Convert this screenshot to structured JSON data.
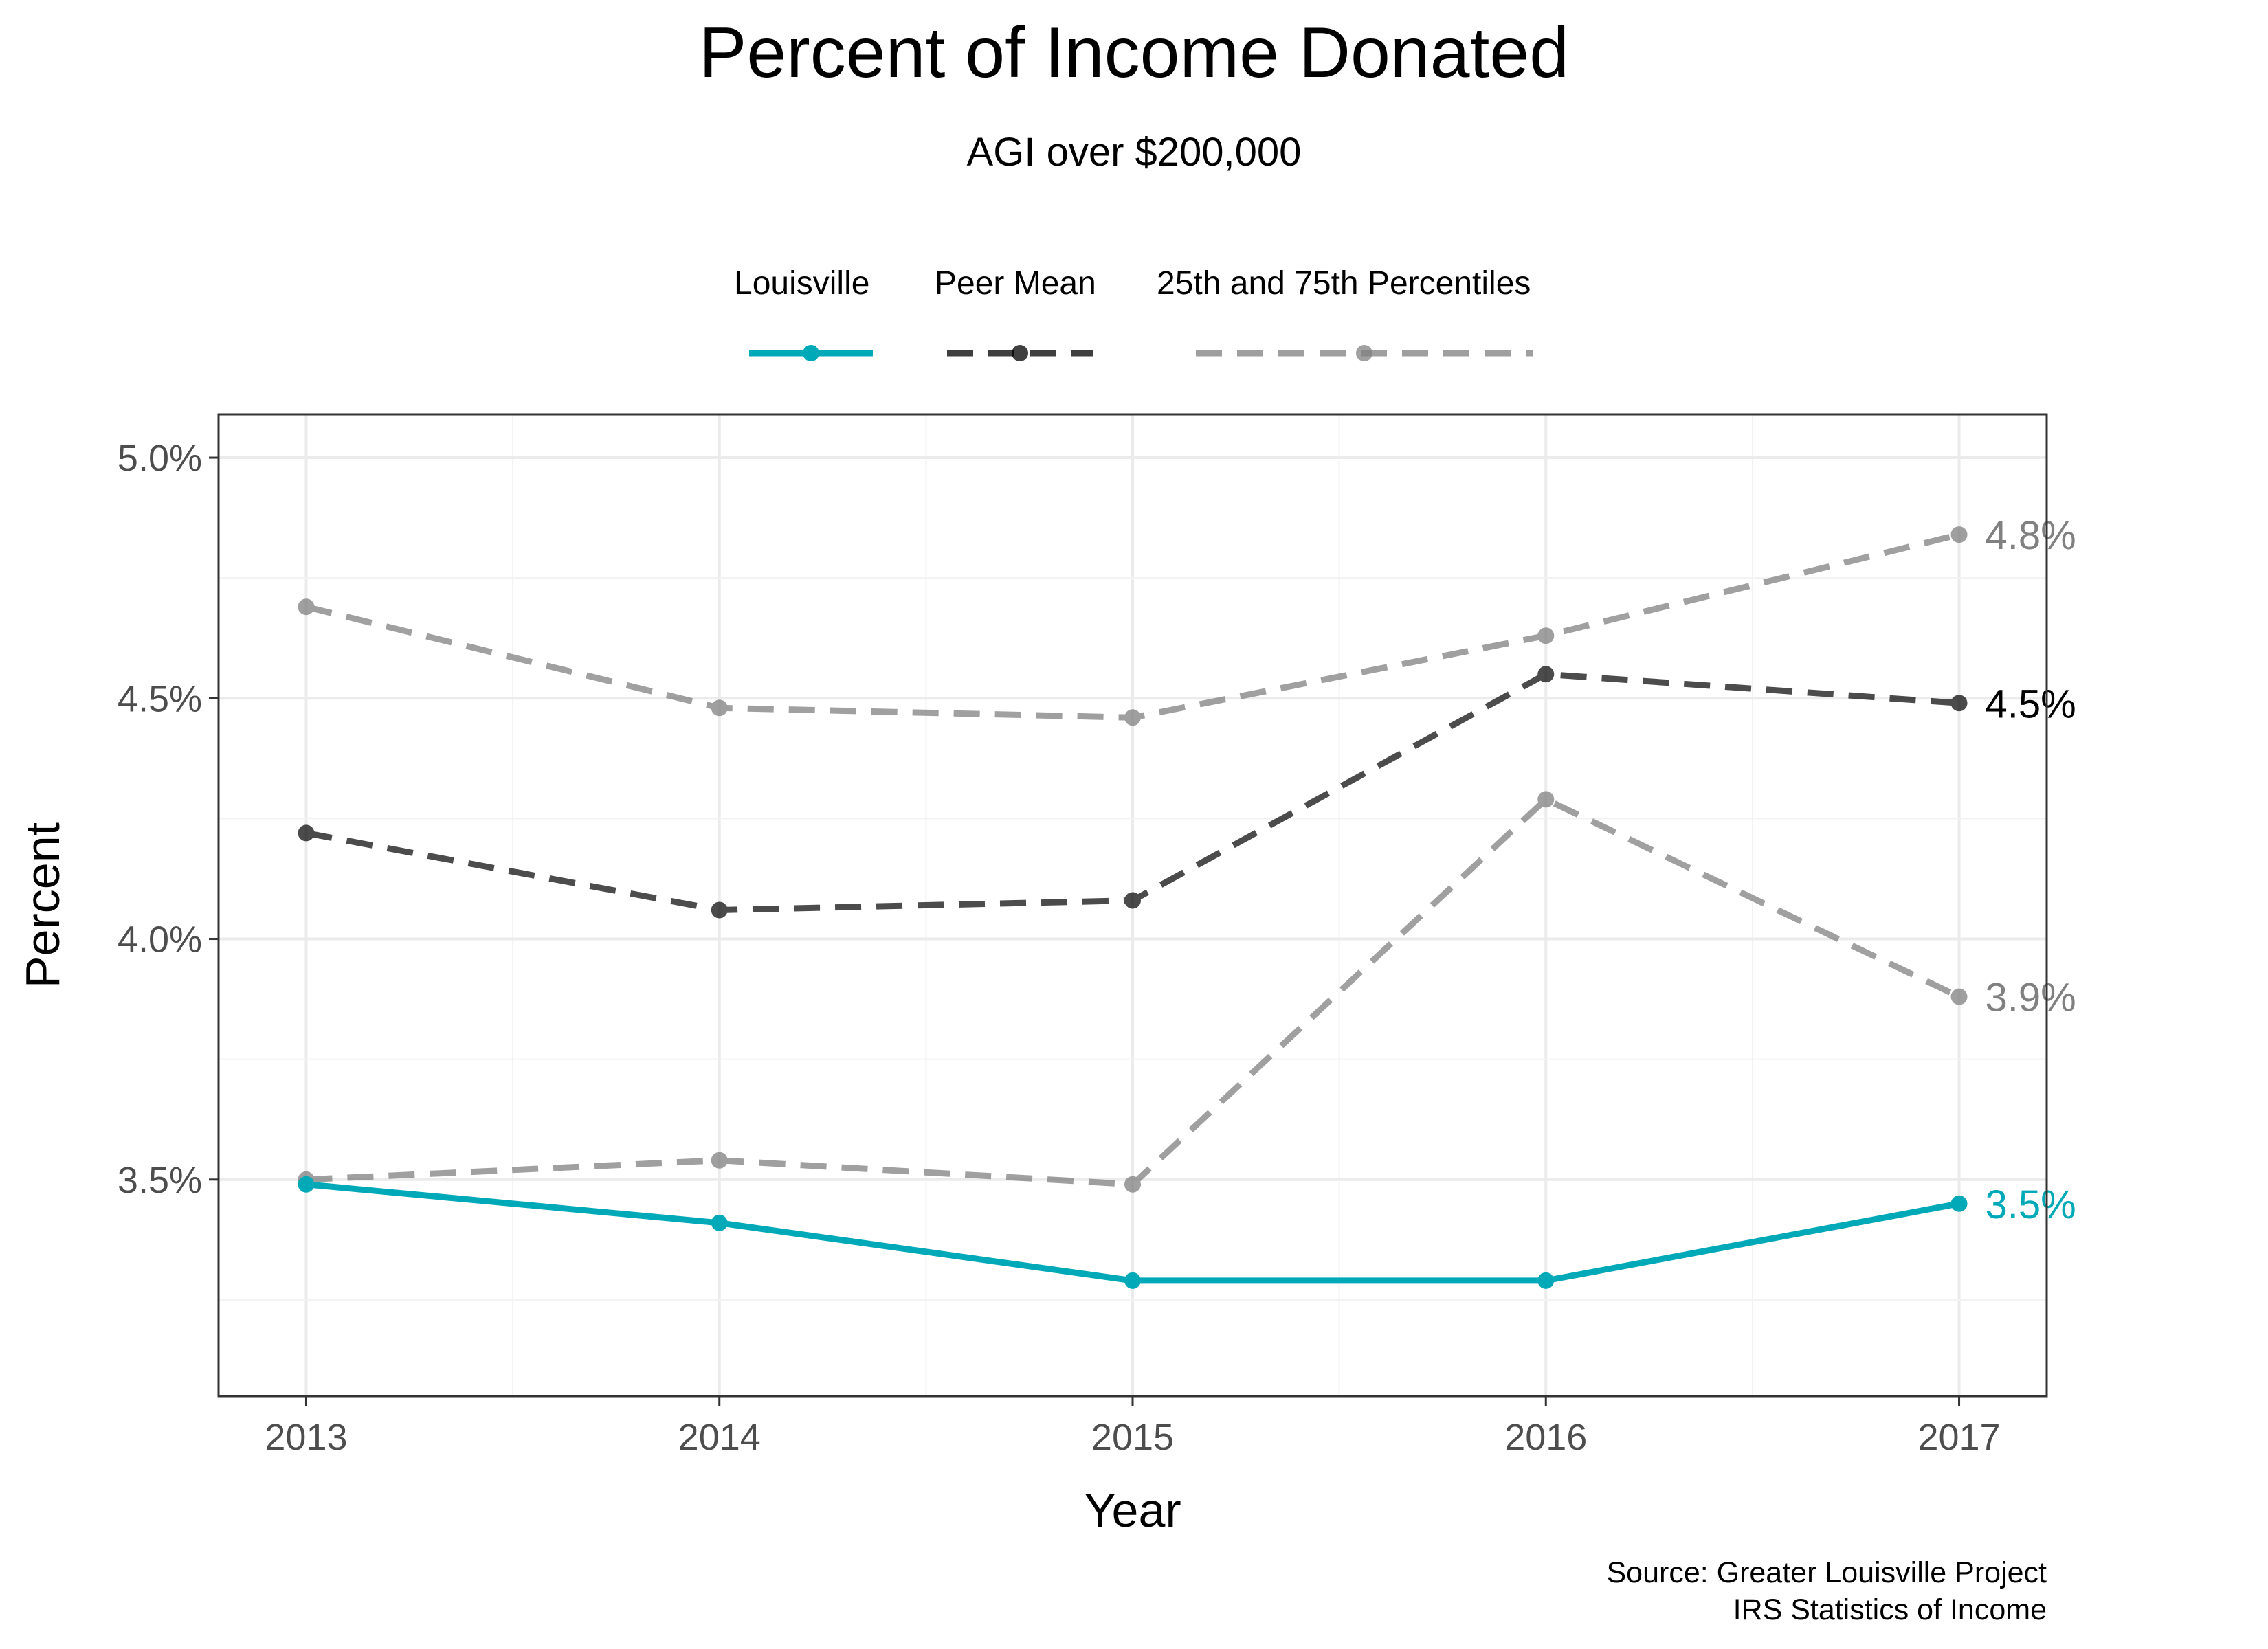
{
  "chart_data": {
    "type": "line",
    "title": "Percent of Income Donated",
    "subtitle": "AGI over $200,000",
    "xlabel": "Year",
    "ylabel": "Percent",
    "x": [
      2013,
      2014,
      2015,
      2016,
      2017
    ],
    "ylim": [
      3.05,
      5.09
    ],
    "yticks": [
      "3.5%",
      "4.0%",
      "4.5%",
      "5.0%"
    ],
    "ytick_values": [
      3.5,
      4.0,
      4.5,
      5.0
    ],
    "xticks": [
      "2013",
      "2014",
      "2015",
      "2016",
      "2017"
    ],
    "grid": true,
    "legend_position": "top",
    "legend": [
      {
        "label": "Louisville",
        "color": "#00a9b7",
        "style": "solid"
      },
      {
        "label": "Peer Mean",
        "color": "#000000",
        "style": "dashed"
      },
      {
        "label": "25th and 75th Percentiles",
        "color": "#808080",
        "style": "dashed"
      }
    ],
    "series": [
      {
        "name": "Louisville",
        "color": "#00a9b7",
        "style": "solid",
        "opacity": 1,
        "values": [
          3.49,
          3.41,
          3.29,
          3.29,
          3.45
        ],
        "end_label": "3.5%"
      },
      {
        "name": "Peer Mean",
        "color": "#000000",
        "style": "dashed",
        "opacity": 0.7,
        "values": [
          4.22,
          4.06,
          4.08,
          4.55,
          4.49
        ],
        "end_label": "4.5%"
      },
      {
        "name": "75th Percentile",
        "color": "#808080",
        "style": "dashed",
        "opacity": 0.75,
        "values": [
          4.69,
          4.48,
          4.46,
          4.63,
          4.84
        ],
        "end_label": "4.8%"
      },
      {
        "name": "25th Percentile",
        "color": "#808080",
        "style": "dashed",
        "opacity": 0.75,
        "values": [
          3.5,
          3.54,
          3.49,
          4.29,
          3.88
        ],
        "end_label": "3.9%"
      }
    ],
    "end_label_colors": [
      "#00a9b7",
      "#000000",
      "#808080",
      "#808080"
    ],
    "source_lines": [
      "Source: Greater Louisville Project",
      "IRS Statistics of Income"
    ]
  }
}
